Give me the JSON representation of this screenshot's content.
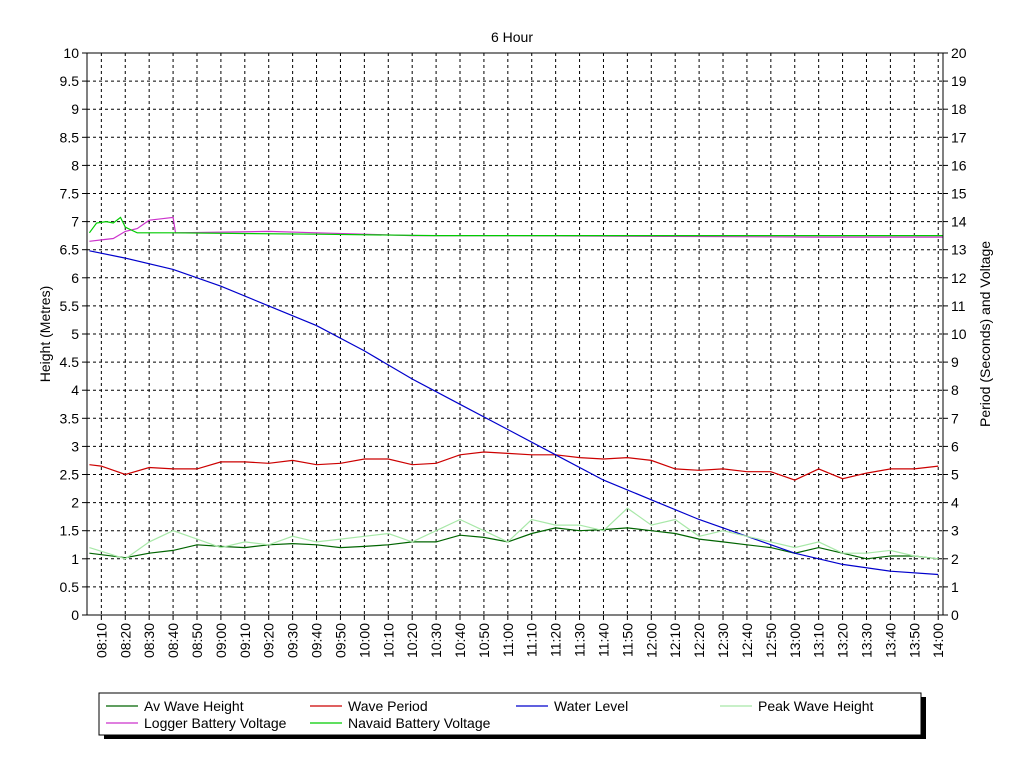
{
  "chart_data": {
    "type": "line",
    "title": "6 Hour",
    "ylabel_left": "Height (Metres)",
    "ylabel_right": "Period (Seconds) and Voltage",
    "ylim_left": [
      0,
      10
    ],
    "ylim_right": [
      0,
      20
    ],
    "yticks_left": [
      "0",
      "0.5",
      "1",
      "1.5",
      "2",
      "2.5",
      "3",
      "3.5",
      "4",
      "4.5",
      "5",
      "5.5",
      "6",
      "6.5",
      "7",
      "7.5",
      "8",
      "8.5",
      "9",
      "9.5",
      "10"
    ],
    "yticks_right": [
      "0",
      "1",
      "2",
      "3",
      "4",
      "5",
      "6",
      "7",
      "8",
      "9",
      "10",
      "11",
      "12",
      "13",
      "14",
      "15",
      "16",
      "17",
      "18",
      "19",
      "20"
    ],
    "x_range": [
      "08:04",
      "14:02"
    ],
    "x_ticks": [
      "08:10",
      "08:20",
      "08:30",
      "08:40",
      "08:50",
      "09:00",
      "09:10",
      "09:20",
      "09:30",
      "09:40",
      "09:50",
      "10:00",
      "10:10",
      "10:20",
      "10:30",
      "10:40",
      "10:50",
      "11:00",
      "11:10",
      "11:20",
      "11:30",
      "11:40",
      "11:50",
      "12:00",
      "12:10",
      "12:20",
      "12:30",
      "12:40",
      "12:50",
      "13:00",
      "13:10",
      "13:20",
      "13:30",
      "13:40",
      "13:50",
      "14:00"
    ],
    "grid": true,
    "legend_position": "bottom",
    "series": [
      {
        "name": "Av Wave Height",
        "axis": "left",
        "color": "#006400",
        "x": [
          "08:05",
          "08:20",
          "08:30",
          "08:40",
          "08:50",
          "09:00",
          "09:10",
          "09:20",
          "09:30",
          "09:40",
          "09:50",
          "10:00",
          "10:10",
          "10:20",
          "10:30",
          "10:40",
          "10:50",
          "11:00",
          "11:10",
          "11:20",
          "11:30",
          "11:40",
          "11:50",
          "12:00",
          "12:10",
          "12:20",
          "12:30",
          "12:40",
          "12:50",
          "13:00",
          "13:10",
          "13:20",
          "13:30",
          "13:40",
          "13:50",
          "14:00"
        ],
        "values": [
          1.1,
          1.02,
          1.1,
          1.15,
          1.25,
          1.22,
          1.2,
          1.25,
          1.27,
          1.25,
          1.2,
          1.22,
          1.25,
          1.3,
          1.3,
          1.42,
          1.38,
          1.3,
          1.45,
          1.55,
          1.5,
          1.52,
          1.55,
          1.5,
          1.45,
          1.35,
          1.3,
          1.25,
          1.2,
          1.1,
          1.2,
          1.1,
          1.0,
          1.05,
          1.05,
          1.0
        ]
      },
      {
        "name": "Wave Period",
        "axis": "right",
        "color": "#cc0000",
        "x": [
          "08:05",
          "08:10",
          "08:20",
          "08:30",
          "08:40",
          "08:50",
          "09:00",
          "09:10",
          "09:20",
          "09:30",
          "09:40",
          "09:50",
          "10:00",
          "10:10",
          "10:20",
          "10:30",
          "10:40",
          "10:50",
          "11:00",
          "11:10",
          "11:20",
          "11:30",
          "11:40",
          "11:50",
          "12:00",
          "12:10",
          "12:20",
          "12:30",
          "12:40",
          "12:50",
          "13:00",
          "13:10",
          "13:20",
          "13:30",
          "13:40",
          "13:50",
          "14:00"
        ],
        "values": [
          5.35,
          5.3,
          5.0,
          5.25,
          5.2,
          5.2,
          5.45,
          5.45,
          5.4,
          5.5,
          5.35,
          5.4,
          5.55,
          5.55,
          5.35,
          5.4,
          5.7,
          5.8,
          5.75,
          5.7,
          5.7,
          5.6,
          5.55,
          5.6,
          5.5,
          5.2,
          5.15,
          5.2,
          5.1,
          5.1,
          4.8,
          5.2,
          4.85,
          5.05,
          5.2,
          5.2,
          5.3
        ]
      },
      {
        "name": "Water Level",
        "axis": "left",
        "color": "#0000cc",
        "x": [
          "08:05",
          "08:20",
          "08:40",
          "09:00",
          "09:20",
          "09:40",
          "10:00",
          "10:20",
          "10:40",
          "11:00",
          "11:20",
          "11:40",
          "12:00",
          "12:20",
          "12:40",
          "13:00",
          "13:20",
          "13:40",
          "14:00"
        ],
        "values": [
          6.48,
          6.35,
          6.15,
          5.85,
          5.5,
          5.15,
          4.7,
          4.2,
          3.75,
          3.3,
          2.85,
          2.4,
          2.05,
          1.7,
          1.4,
          1.1,
          0.9,
          0.78,
          0.72
        ]
      },
      {
        "name": "Peak Wave Height",
        "axis": "left",
        "color": "#a8e8a8",
        "x": [
          "08:05",
          "08:20",
          "08:30",
          "08:40",
          "08:50",
          "09:00",
          "09:10",
          "09:20",
          "09:30",
          "09:40",
          "09:50",
          "10:00",
          "10:10",
          "10:20",
          "10:30",
          "10:40",
          "10:50",
          "11:00",
          "11:10",
          "11:20",
          "11:30",
          "11:40",
          "11:50",
          "12:00",
          "12:10",
          "12:20",
          "12:30",
          "12:40",
          "12:50",
          "13:00",
          "13:10",
          "13:20",
          "13:30",
          "13:40",
          "13:50",
          "14:00"
        ],
        "values": [
          1.2,
          1.0,
          1.3,
          1.5,
          1.35,
          1.2,
          1.3,
          1.25,
          1.4,
          1.3,
          1.35,
          1.4,
          1.45,
          1.3,
          1.5,
          1.7,
          1.5,
          1.3,
          1.7,
          1.6,
          1.6,
          1.5,
          1.9,
          1.6,
          1.7,
          1.4,
          1.5,
          1.4,
          1.3,
          1.2,
          1.3,
          1.1,
          1.1,
          1.15,
          1.05,
          1.0
        ]
      },
      {
        "name": "Logger Battery Voltage",
        "axis": "right",
        "color": "#cc33cc",
        "x": [
          "08:05",
          "08:10",
          "08:15",
          "08:20",
          "08:25",
          "08:30",
          "08:35",
          "08:40",
          "08:41",
          "09:20",
          "09:40",
          "10:20",
          "11:00",
          "13:10",
          "14:02"
        ],
        "values": [
          13.3,
          13.35,
          13.4,
          13.65,
          13.75,
          14.05,
          14.1,
          14.15,
          13.6,
          13.65,
          13.6,
          13.5,
          13.5,
          13.45,
          13.45
        ]
      },
      {
        "name": "Navaid Battery Voltage",
        "axis": "right",
        "color": "#00cc00",
        "x": [
          "08:05",
          "08:08",
          "08:12",
          "08:15",
          "08:18",
          "08:20",
          "08:25",
          "08:40",
          "09:40",
          "10:30",
          "11:30",
          "14:02"
        ],
        "values": [
          13.6,
          13.95,
          14.0,
          13.95,
          14.15,
          13.8,
          13.6,
          13.6,
          13.55,
          13.5,
          13.5,
          13.5
        ]
      }
    ]
  }
}
